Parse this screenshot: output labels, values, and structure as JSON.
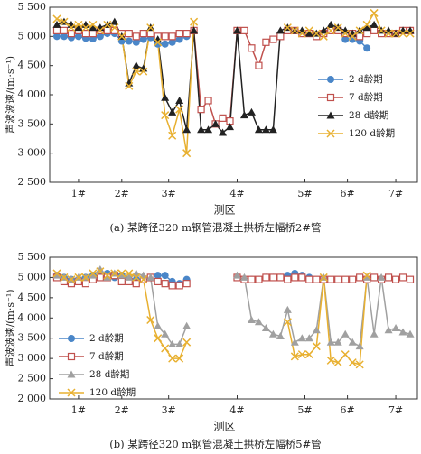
{
  "chart_data": [
    {
      "type": "line",
      "caption": "(a) 某跨径320 m钢管混凝土拱桥左幅桥2#管",
      "ylabel": "声波波速/(m·s⁻¹)",
      "xlabel": "测区",
      "xlim": [
        0,
        51
      ],
      "xticks": [
        {
          "value": 4,
          "label": "1#"
        },
        {
          "value": 10,
          "label": "2#"
        },
        {
          "value": 16.5,
          "label": "3#"
        },
        {
          "value": 26,
          "label": "4#"
        },
        {
          "value": 35.4,
          "label": "5#"
        },
        {
          "value": 41.3,
          "label": "6#"
        },
        {
          "value": 48,
          "label": "7#"
        }
      ],
      "x": [
        1,
        2,
        3,
        4,
        5,
        6,
        7,
        8,
        9,
        10,
        11,
        12,
        13,
        14,
        15,
        16,
        17,
        18,
        19,
        20,
        21,
        22,
        23,
        24,
        25,
        26,
        27,
        28,
        29,
        30,
        31,
        32,
        33,
        34,
        35,
        36,
        37,
        38,
        39,
        40,
        41,
        42,
        43,
        44,
        45,
        46,
        47,
        48,
        49,
        50
      ],
      "ylim": [
        2500,
        5500
      ],
      "yticks": [
        {
          "value": 2500,
          "label": "2 500"
        },
        {
          "value": 3000,
          "label": "3 000"
        },
        {
          "value": 3500,
          "label": "3 500"
        },
        {
          "value": 4000,
          "label": "4 000"
        },
        {
          "value": 4500,
          "label": "4 500"
        },
        {
          "value": 5000,
          "label": "5 000"
        },
        {
          "value": 5500,
          "label": "5 500"
        }
      ],
      "legend": "right",
      "series": [
        {
          "name": "2 d龄期",
          "color": "#4a86c8",
          "marker": "circle",
          "values": [
            5000,
            5000,
            4980,
            5000,
            4970,
            4960,
            5000,
            5050,
            5050,
            4920,
            4920,
            4900,
            4950,
            4980,
            4870,
            4870,
            4900,
            4950,
            5000,
            null,
            null,
            null,
            null,
            null,
            null,
            null,
            null,
            null,
            null,
            null,
            null,
            null,
            5100,
            5100,
            5050,
            5050,
            5000,
            5050,
            5150,
            5100,
            4950,
            4950,
            4920,
            4800,
            null,
            null,
            null,
            null,
            null,
            null
          ]
        },
        {
          "name": "7 d龄期",
          "color": "#c0504d",
          "marker": "square",
          "values": [
            5100,
            5100,
            5050,
            5100,
            5050,
            5050,
            5100,
            5100,
            5100,
            5050,
            5050,
            5000,
            5050,
            5050,
            5000,
            5000,
            5000,
            5050,
            5050,
            5100,
            3750,
            3900,
            3500,
            3600,
            3550,
            5100,
            5100,
            4800,
            4500,
            4900,
            4950,
            5000,
            5100,
            5100,
            5050,
            5050,
            5000,
            5050,
            5100,
            5100,
            5050,
            5050,
            5000,
            5050,
            5100,
            5050,
            5050,
            5050,
            5100,
            5100
          ]
        },
        {
          "name": "28 d龄期",
          "color": "#222222",
          "marker": "triangle",
          "values": [
            5200,
            5250,
            5200,
            5150,
            5200,
            5150,
            5150,
            5200,
            5250,
            5000,
            4200,
            4500,
            4450,
            5150,
            4950,
            3950,
            3700,
            3900,
            3400,
            5100,
            3400,
            3400,
            3500,
            3350,
            3450,
            5100,
            3650,
            3700,
            3400,
            3400,
            3400,
            5100,
            5150,
            5100,
            5100,
            5050,
            5050,
            5100,
            5200,
            5150,
            5100,
            5050,
            5100,
            5150,
            5200,
            5100,
            5100,
            5050,
            5100,
            5100
          ]
        },
        {
          "name": "120 d龄期",
          "color": "#e8b030",
          "marker": "cross",
          "values": [
            5300,
            5250,
            5150,
            5200,
            5150,
            5200,
            5100,
            5200,
            5150,
            5000,
            4150,
            4400,
            4400,
            5150,
            4900,
            3650,
            3300,
            3750,
            3000,
            5250,
            null,
            null,
            null,
            null,
            null,
            null,
            null,
            null,
            null,
            null,
            null,
            null,
            5150,
            5100,
            5050,
            5100,
            5050,
            5000,
            5100,
            5150,
            5050,
            5000,
            5100,
            5200,
            5400,
            5100,
            5050,
            5050,
            5050,
            5050
          ]
        }
      ]
    },
    {
      "type": "line",
      "caption": "(b) 某跨径320 m钢管混凝土拱桥左幅桥5#管",
      "ylabel": "声波波速/(m·s⁻¹)",
      "xlabel": "测区",
      "xlim": [
        0,
        51
      ],
      "xticks": [
        {
          "value": 4,
          "label": "1#"
        },
        {
          "value": 10,
          "label": "2#"
        },
        {
          "value": 16.5,
          "label": "3#"
        },
        {
          "value": 26,
          "label": "4#"
        },
        {
          "value": 35.4,
          "label": "5#"
        },
        {
          "value": 41.3,
          "label": "6#"
        },
        {
          "value": 48,
          "label": "7#"
        }
      ],
      "x": [
        1,
        2,
        3,
        4,
        5,
        6,
        7,
        8,
        9,
        10,
        11,
        12,
        13,
        14,
        15,
        16,
        17,
        18,
        19,
        20,
        21,
        22,
        23,
        24,
        25,
        26,
        27,
        28,
        29,
        30,
        31,
        32,
        33,
        34,
        35,
        36,
        37,
        38,
        39,
        40,
        41,
        42,
        43,
        44,
        45,
        46,
        47,
        48,
        49,
        50
      ],
      "ylim": [
        2000,
        5500
      ],
      "yticks": [
        {
          "value": 2000,
          "label": "2 000"
        },
        {
          "value": 2500,
          "label": "2 500"
        },
        {
          "value": 3000,
          "label": "3 000"
        },
        {
          "value": 3500,
          "label": "3 500"
        },
        {
          "value": 4000,
          "label": "4 000"
        },
        {
          "value": 4500,
          "label": "4 500"
        },
        {
          "value": 5000,
          "label": "5 000"
        },
        {
          "value": 5500,
          "label": "5 500"
        }
      ],
      "legend": "left",
      "series": [
        {
          "name": "2 d龄期",
          "color": "#4a86c8",
          "marker": "circle",
          "values": [
            5050,
            5000,
            4950,
            4950,
            5000,
            5050,
            5050,
            5100,
            5000,
            5050,
            4950,
            4950,
            4950,
            5000,
            5050,
            5050,
            4900,
            4850,
            4950,
            null,
            null,
            null,
            null,
            null,
            null,
            5000,
            4950,
            4950,
            4950,
            5000,
            5000,
            5000,
            5050,
            5100,
            5050,
            5000,
            null,
            null,
            null,
            null,
            null,
            null,
            null,
            null,
            null,
            null,
            null,
            null,
            null,
            null
          ]
        },
        {
          "name": "7 d龄期",
          "color": "#c0504d",
          "marker": "square",
          "values": [
            5000,
            4900,
            4850,
            4900,
            4850,
            4950,
            5000,
            5000,
            5050,
            4900,
            4900,
            4850,
            4950,
            5000,
            4900,
            4850,
            4800,
            4800,
            4850,
            null,
            null,
            null,
            null,
            null,
            null,
            5000,
            4950,
            4950,
            4950,
            5000,
            5000,
            5000,
            4950,
            5000,
            5000,
            4950,
            4950,
            4950,
            4950,
            4950,
            4950,
            4950,
            5000,
            4950,
            5000,
            4950,
            5000,
            4950,
            5000,
            4950
          ]
        },
        {
          "name": "28 d龄期",
          "color": "#a0a0a0",
          "marker": "triangle",
          "values": [
            5050,
            5000,
            4950,
            5000,
            5000,
            5050,
            5200,
            5000,
            5100,
            5050,
            5000,
            5100,
            5050,
            5000,
            3800,
            3600,
            3350,
            3350,
            3800,
            null,
            null,
            null,
            null,
            null,
            null,
            5050,
            5000,
            3950,
            3900,
            3750,
            3600,
            3550,
            4200,
            3400,
            3500,
            3500,
            3700,
            5000,
            3400,
            3400,
            3600,
            3400,
            3300,
            5000,
            3600,
            5000,
            3700,
            3750,
            3650,
            3600
          ]
        },
        {
          "name": "120 d龄期",
          "color": "#e8b030",
          "marker": "cross",
          "values": [
            5100,
            5000,
            4950,
            5000,
            5000,
            5100,
            5150,
            5050,
            5100,
            5100,
            5100,
            5000,
            4950,
            3950,
            3500,
            3250,
            3000,
            3000,
            3400,
            null,
            null,
            null,
            null,
            null,
            null,
            null,
            null,
            null,
            null,
            null,
            null,
            null,
            3900,
            3050,
            3100,
            3100,
            3300,
            5000,
            2950,
            2900,
            3100,
            2900,
            2850,
            5050,
            null,
            null,
            null,
            null,
            null,
            null
          ]
        }
      ]
    }
  ]
}
